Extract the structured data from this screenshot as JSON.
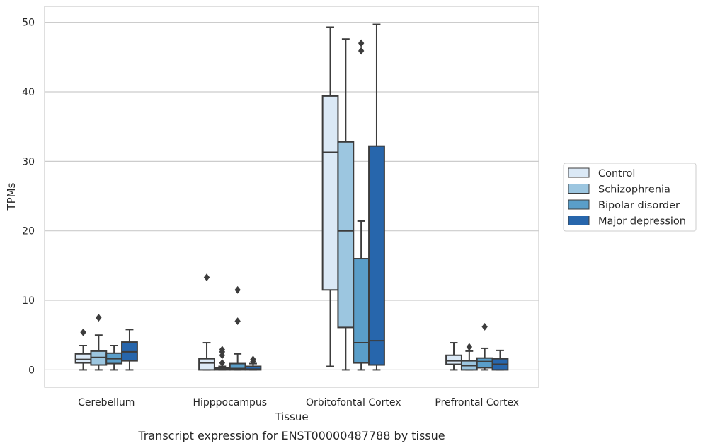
{
  "chart_data": {
    "type": "box",
    "caption": "Transcript expression for ENST00000487788 by tissue",
    "xlabel": "Tissue",
    "ylabel": "TPMs",
    "ylim": [
      -2.5,
      52.3
    ],
    "yticks": [
      0,
      10,
      20,
      30,
      40,
      50
    ],
    "grid": "horizontal",
    "legend_position": "right",
    "categories": [
      "Cerebellum",
      "Hipppocampus",
      "Orbitofontal Cortex",
      "Prefrontal Cortex"
    ],
    "series": [
      {
        "name": "Control",
        "color": "#dbe9f6",
        "boxes": [
          {
            "whislo": 0,
            "q1": 1.0,
            "med": 1.5,
            "q3": 2.3,
            "whishi": 3.5,
            "fliers": [
              5.4
            ]
          },
          {
            "whislo": 0,
            "q1": 0,
            "med": 1.0,
            "q3": 1.6,
            "whishi": 3.9,
            "fliers": [
              13.3
            ]
          },
          {
            "whislo": 0.5,
            "q1": 11.5,
            "med": 31.3,
            "q3": 39.4,
            "whishi": 49.3,
            "fliers": []
          },
          {
            "whislo": 0,
            "q1": 0.8,
            "med": 1.3,
            "q3": 2.1,
            "whishi": 3.9,
            "fliers": []
          }
        ]
      },
      {
        "name": "Schizophrenia",
        "color": "#9cc6e0",
        "boxes": [
          {
            "whislo": 0,
            "q1": 0.7,
            "med": 1.8,
            "q3": 2.7,
            "whishi": 5.0,
            "fliers": [
              7.5
            ]
          },
          {
            "whislo": 0,
            "q1": 0,
            "med": 0.1,
            "q3": 0.3,
            "whishi": 0.5,
            "fliers": [
              1.0,
              2.1,
              2.6,
              2.9
            ]
          },
          {
            "whislo": 0,
            "q1": 6.1,
            "med": 20.0,
            "q3": 32.8,
            "whishi": 47.6,
            "fliers": []
          },
          {
            "whislo": 0,
            "q1": 0,
            "med": 0.6,
            "q3": 1.3,
            "whishi": 2.7,
            "fliers": [
              3.3
            ]
          }
        ]
      },
      {
        "name": "Bipolar disorder",
        "color": "#5a9ec9",
        "boxes": [
          {
            "whislo": 0,
            "q1": 0.9,
            "med": 1.6,
            "q3": 2.4,
            "whishi": 3.5,
            "fliers": []
          },
          {
            "whislo": 0,
            "q1": 0,
            "med": 0.2,
            "q3": 0.9,
            "whishi": 2.3,
            "fliers": [
              7.0,
              11.5
            ]
          },
          {
            "whislo": 0,
            "q1": 1.0,
            "med": 3.9,
            "q3": 16.0,
            "whishi": 21.4,
            "fliers": [
              45.9,
              47.0
            ]
          },
          {
            "whislo": 0,
            "q1": 0.3,
            "med": 1.2,
            "q3": 1.7,
            "whishi": 3.1,
            "fliers": [
              6.2
            ]
          }
        ]
      },
      {
        "name": "Major depression",
        "color": "#2766ac",
        "boxes": [
          {
            "whislo": 0,
            "q1": 1.3,
            "med": 2.6,
            "q3": 4.0,
            "whishi": 5.8,
            "fliers": []
          },
          {
            "whislo": 0,
            "q1": 0,
            "med": 0.1,
            "q3": 0.5,
            "whishi": 0.9,
            "fliers": [
              1.2,
              1.5
            ]
          },
          {
            "whislo": 0,
            "q1": 0.7,
            "med": 4.2,
            "q3": 32.2,
            "whishi": 49.7,
            "fliers": []
          },
          {
            "whislo": 0,
            "q1": 0,
            "med": 0.8,
            "q3": 1.6,
            "whishi": 2.8,
            "fliers": []
          }
        ]
      }
    ]
  }
}
